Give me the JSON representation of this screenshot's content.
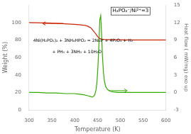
{
  "chart_data": {
    "type": "line",
    "x_label": "Temperature (K)",
    "y_label": "Weight (%)",
    "y2_label": "Heat flow ( mW/mg) exo up",
    "xlim": [
      300,
      600
    ],
    "xticks": [
      300,
      350,
      400,
      450,
      500,
      550,
      600
    ],
    "ylim": [
      0,
      120
    ],
    "yticks": [
      0,
      20,
      40,
      60,
      80,
      100
    ],
    "y2lim": [
      -3,
      15
    ],
    "y2ticks": [
      -3,
      0,
      3,
      6,
      9,
      12,
      15
    ],
    "grid": false,
    "series": [
      {
        "color": "#cc2200",
        "x": [
          300,
          320,
          340,
          360,
          380,
          400,
          410,
          420,
          425,
          430,
          435,
          438,
          441,
          444,
          447,
          449,
          451,
          453,
          455,
          457,
          460,
          465,
          470,
          480,
          490,
          500,
          520,
          540,
          560,
          580,
          600
        ],
        "values": [
          100,
          99.8,
          99.5,
          99.1,
          98.6,
          98.0,
          97.5,
          97.0,
          96.5,
          95.5,
          94.0,
          92.5,
          90.5,
          88.5,
          86.5,
          85.0,
          83.5,
          82.5,
          81.8,
          81.3,
          81.0,
          80.7,
          80.5,
          80.4,
          80.3,
          80.2,
          80.1,
          80.1,
          80.0,
          80.0,
          80.0
        ]
      },
      {
        "color": "#33aa00",
        "axis": "y2",
        "x": [
          300,
          320,
          340,
          360,
          380,
          400,
          410,
          420,
          425,
          430,
          435,
          438,
          441,
          444,
          447,
          449,
          451,
          453,
          455,
          457,
          459,
          461,
          463,
          465,
          468,
          472,
          478,
          485,
          495,
          510,
          530,
          560,
          590,
          600
        ],
        "values": [
          0.0,
          0.0,
          -0.1,
          -0.1,
          -0.2,
          -0.2,
          -0.3,
          -0.4,
          -0.5,
          -0.6,
          -0.7,
          -0.8,
          -0.7,
          -0.4,
          0.5,
          2.0,
          4.5,
          8.0,
          12.5,
          13.2,
          10.0,
          6.0,
          3.5,
          2.0,
          1.0,
          0.5,
          0.2,
          0.1,
          0.0,
          0.0,
          0.0,
          0.0,
          0.0,
          0.0
        ]
      }
    ],
    "arrows": [
      {
        "x1": 375,
        "x2": 330,
        "y": 99,
        "color": "#cc2200"
      },
      {
        "x1": 475,
        "x2": 515,
        "y": 0.3,
        "color": "#33aa00",
        "axis": "y2"
      }
    ],
    "annotations": [
      "H₂PO₂⁻/Ni²⁺=3",
      "4Ni(H₂PO₂)₂ + 3NH₄HPO₂ = 2Ni₂P + 4P₂O₃ + H₂",
      "              + PH₃ + 3NH₃ + 10H₂O"
    ]
  }
}
